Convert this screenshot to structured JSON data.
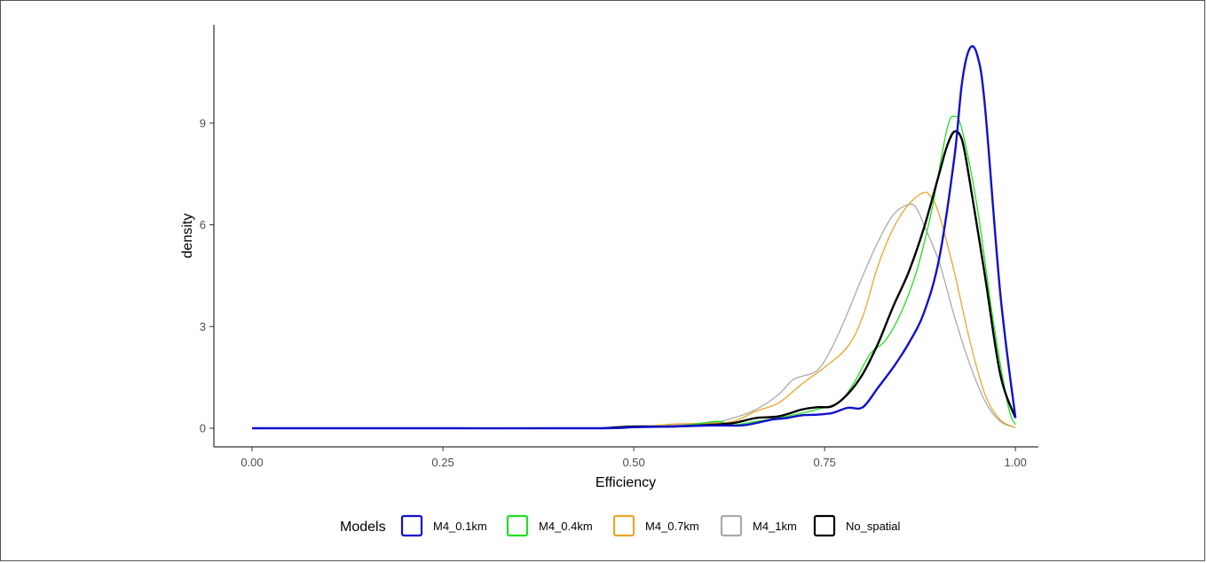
{
  "chart_data": {
    "type": "line",
    "xlabel": "Efficiency",
    "ylabel": "density",
    "xlim": [
      -0.05,
      1.03
    ],
    "ylim": [
      -0.55,
      11.9
    ],
    "x_ticks": [
      0.0,
      0.25,
      0.5,
      0.75,
      1.0
    ],
    "x_tick_labels": [
      "0.00",
      "0.25",
      "0.50",
      "0.75",
      "1.00"
    ],
    "y_ticks": [
      0,
      3,
      6,
      9
    ],
    "y_tick_labels": [
      "0",
      "3",
      "6",
      "9"
    ],
    "grid": false,
    "legend": {
      "title": "Models",
      "position": "bottom"
    },
    "series": [
      {
        "name": "M4_1km",
        "color": "#aaaaaa",
        "x": [
          0.46,
          0.5,
          0.55,
          0.6,
          0.63,
          0.66,
          0.69,
          0.71,
          0.74,
          0.76,
          0.78,
          0.8,
          0.82,
          0.84,
          0.86,
          0.87,
          0.88,
          0.9,
          0.92,
          0.94,
          0.96,
          0.98,
          1.0
        ],
        "y": [
          0.0,
          0.02,
          0.1,
          0.15,
          0.3,
          0.55,
          1.0,
          1.45,
          1.7,
          2.4,
          3.4,
          4.5,
          5.5,
          6.3,
          6.6,
          6.5,
          6.0,
          4.9,
          3.3,
          1.9,
          0.8,
          0.2,
          0.02
        ]
      },
      {
        "name": "M4_0.7km",
        "color": "#e8a62d",
        "x": [
          0.46,
          0.5,
          0.55,
          0.6,
          0.63,
          0.66,
          0.69,
          0.72,
          0.75,
          0.78,
          0.8,
          0.82,
          0.84,
          0.86,
          0.88,
          0.89,
          0.9,
          0.92,
          0.94,
          0.96,
          0.98,
          1.0
        ],
        "y": [
          0.0,
          0.02,
          0.12,
          0.15,
          0.2,
          0.5,
          0.75,
          1.3,
          1.8,
          2.4,
          3.3,
          4.8,
          5.9,
          6.6,
          6.95,
          6.8,
          6.3,
          4.6,
          2.6,
          1.0,
          0.25,
          0.02
        ]
      },
      {
        "name": "M4_0.4km",
        "color": "#22dd22",
        "x": [
          0.46,
          0.5,
          0.55,
          0.58,
          0.61,
          0.63,
          0.66,
          0.7,
          0.74,
          0.77,
          0.79,
          0.81,
          0.83,
          0.85,
          0.87,
          0.89,
          0.91,
          0.92,
          0.93,
          0.95,
          0.97,
          0.99,
          1.0
        ],
        "y": [
          0.0,
          0.02,
          0.05,
          0.12,
          0.2,
          0.1,
          0.2,
          0.35,
          0.55,
          0.8,
          1.4,
          2.2,
          2.6,
          3.4,
          4.6,
          6.4,
          8.8,
          9.2,
          8.8,
          6.5,
          3.3,
          0.7,
          0.1
        ]
      },
      {
        "name": "No_spatial",
        "color": "#000000",
        "x": [
          0.46,
          0.5,
          0.55,
          0.6,
          0.63,
          0.66,
          0.69,
          0.72,
          0.74,
          0.76,
          0.78,
          0.8,
          0.82,
          0.84,
          0.86,
          0.88,
          0.9,
          0.91,
          0.92,
          0.93,
          0.94,
          0.96,
          0.98,
          1.0
        ],
        "y": [
          0.0,
          0.05,
          0.05,
          0.1,
          0.15,
          0.3,
          0.35,
          0.55,
          0.62,
          0.65,
          1.0,
          1.6,
          2.5,
          3.6,
          4.6,
          5.9,
          7.5,
          8.3,
          8.75,
          8.5,
          7.3,
          4.5,
          1.6,
          0.3
        ]
      },
      {
        "name": "M4_0.1km",
        "color": "#1010cc",
        "x": [
          0.0,
          0.25,
          0.46,
          0.5,
          0.55,
          0.6,
          0.64,
          0.66,
          0.68,
          0.7,
          0.72,
          0.74,
          0.76,
          0.78,
          0.8,
          0.82,
          0.84,
          0.86,
          0.88,
          0.9,
          0.92,
          0.93,
          0.94,
          0.95,
          0.96,
          0.98,
          1.0
        ],
        "y": [
          0.0,
          0.0,
          0.0,
          0.03,
          0.05,
          0.08,
          0.08,
          0.15,
          0.25,
          0.3,
          0.38,
          0.4,
          0.45,
          0.6,
          0.62,
          1.2,
          1.8,
          2.5,
          3.4,
          5.0,
          8.0,
          10.2,
          11.2,
          11.0,
          9.5,
          4.0,
          0.3
        ]
      }
    ]
  }
}
